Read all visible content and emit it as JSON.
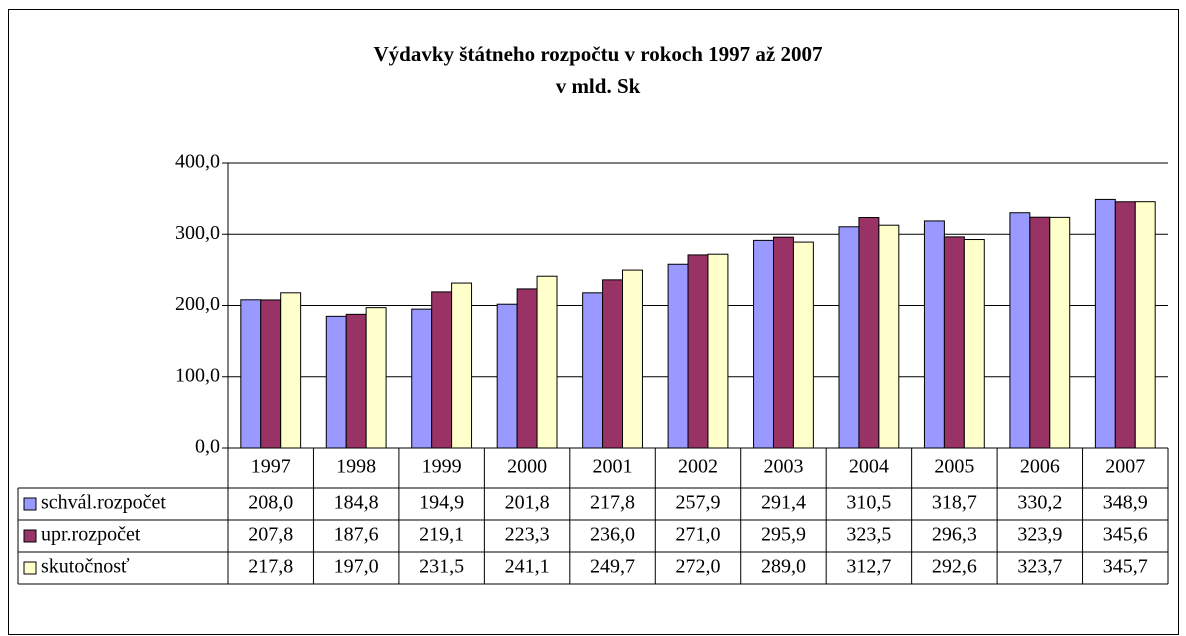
{
  "chart_data": {
    "type": "bar",
    "title": "Výdavky štátneho rozpočtu v rokoch 1997 až 2007",
    "subtitle": "v mld. Sk",
    "categories": [
      "1997",
      "1998",
      "1999",
      "2000",
      "2001",
      "2002",
      "2003",
      "2004",
      "2005",
      "2006",
      "2007"
    ],
    "series": [
      {
        "name": "schvál.rozpočet",
        "color": "#9999ff",
        "values": [
          208.0,
          184.8,
          194.9,
          201.8,
          217.8,
          257.9,
          291.4,
          310.5,
          318.7,
          330.2,
          348.9
        ],
        "value_labels": [
          "208,0",
          "184,8",
          "194,9",
          "201,8",
          "217,8",
          "257,9",
          "291,4",
          "310,5",
          "318,7",
          "330,2",
          "348,9"
        ]
      },
      {
        "name": "upr.rozpočet",
        "color": "#993366",
        "values": [
          207.8,
          187.6,
          219.1,
          223.3,
          236.0,
          271.0,
          295.9,
          323.5,
          296.3,
          323.9,
          345.6
        ],
        "value_labels": [
          "207,8",
          "187,6",
          "219,1",
          "223,3",
          "236,0",
          "271,0",
          "295,9",
          "323,5",
          "296,3",
          "323,9",
          "345,6"
        ]
      },
      {
        "name": "skutočnosť",
        "color": "#ffffcc",
        "values": [
          217.8,
          197.0,
          231.5,
          241.1,
          249.7,
          272.0,
          289.0,
          312.7,
          292.6,
          323.7,
          345.7
        ],
        "value_labels": [
          "217,8",
          "197,0",
          "231,5",
          "241,1",
          "249,7",
          "272,0",
          "289,0",
          "312,7",
          "292,6",
          "323,7",
          "345,7"
        ]
      }
    ],
    "ylim": [
      0,
      400
    ],
    "yticks": [
      {
        "value": 0,
        "label": "0,0"
      },
      {
        "value": 100,
        "label": "100,0"
      },
      {
        "value": 200,
        "label": "200,0"
      },
      {
        "value": 300,
        "label": "300,0"
      },
      {
        "value": 400,
        "label": "400,0"
      }
    ],
    "grid": true
  }
}
